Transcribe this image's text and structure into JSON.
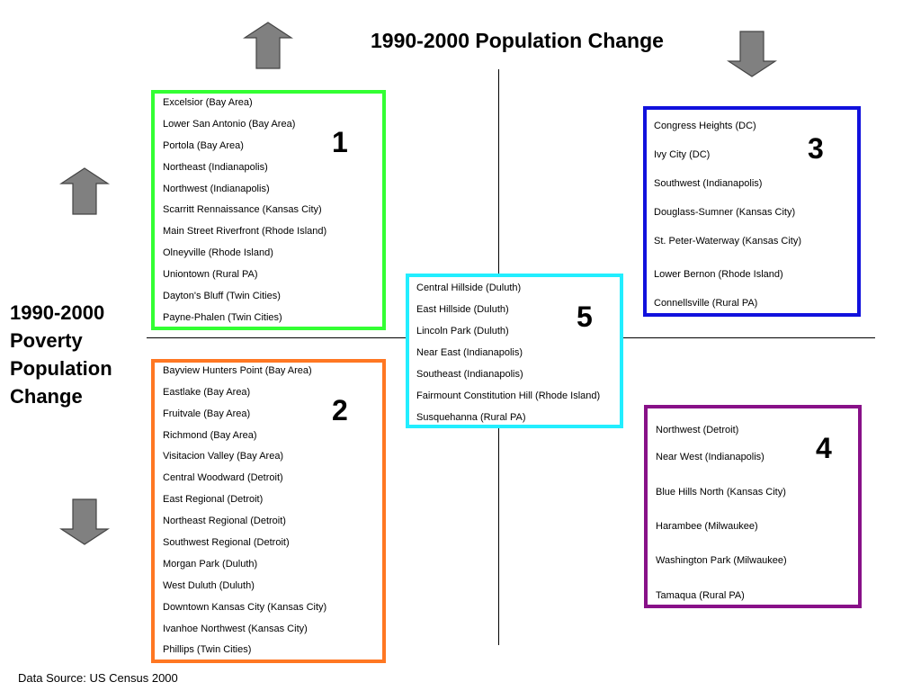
{
  "title": "1990-2000 Population Change",
  "side_title": {
    "line1": "1990-2000",
    "line2": "Poverty",
    "line3": "Population",
    "line4": "Change"
  },
  "source": "Data Source: US Census 2000",
  "colors": {
    "box1": "#33ff33",
    "box2": "#ff7722",
    "box3": "#1111dd",
    "box4": "#881188",
    "box5": "#22eeff",
    "arrow_fill": "#808080"
  },
  "boxes": [
    {
      "number": "1",
      "items": [
        "Excelsior (Bay Area)",
        "Lower San Antonio (Bay Area)",
        "Portola (Bay Area)",
        "Northeast (Indianapolis)",
        "Northwest (Indianapolis)",
        "Scarritt Rennaissance (Kansas City)",
        "Main Street Riverfront (Rhode Island)",
        "Olneyville (Rhode Island)",
        "Uniontown (Rural PA)",
        "Dayton's Bluff (Twin Cities)",
        "Payne-Phalen (Twin Cities)"
      ]
    },
    {
      "number": "2",
      "items": [
        "Bayview Hunters Point (Bay Area)",
        "Eastlake (Bay Area)",
        "Fruitvale (Bay Area)",
        "Richmond (Bay Area)",
        "Visitacion Valley (Bay Area)",
        "Central Woodward (Detroit)",
        "East Regional (Detroit)",
        "Northeast Regional (Detroit)",
        "Southwest Regional (Detroit)",
        "Morgan Park (Duluth)",
        "West Duluth (Duluth)",
        "Downtown Kansas City (Kansas City)",
        "Ivanhoe Northwest (Kansas City)",
        "Phillips (Twin Cities)"
      ]
    },
    {
      "number": "3",
      "items": [
        "Congress Heights (DC)",
        "Ivy City (DC)",
        "Southwest (Indianapolis)",
        "Douglass-Sumner (Kansas City)",
        "St. Peter-Waterway (Kansas City)",
        "Lower Bernon (Rhode Island)",
        "Connellsville (Rural PA)"
      ]
    },
    {
      "number": "4",
      "items": [
        "Northwest (Detroit)",
        "Near West (Indianapolis)",
        "Blue Hills North (Kansas City)",
        "Harambee (Milwaukee)",
        "Washington Park (Milwaukee)",
        "Tamaqua (Rural PA)"
      ]
    },
    {
      "number": "5",
      "items": [
        "Central Hillside (Duluth)",
        "East Hillside (Duluth)",
        "Lincoln Park (Duluth)",
        "Near East (Indianapolis)",
        "Southeast (Indianapolis)",
        "Fairmount Constitution Hill (Rhode Island)",
        "Susquehanna (Rural PA)"
      ]
    }
  ]
}
